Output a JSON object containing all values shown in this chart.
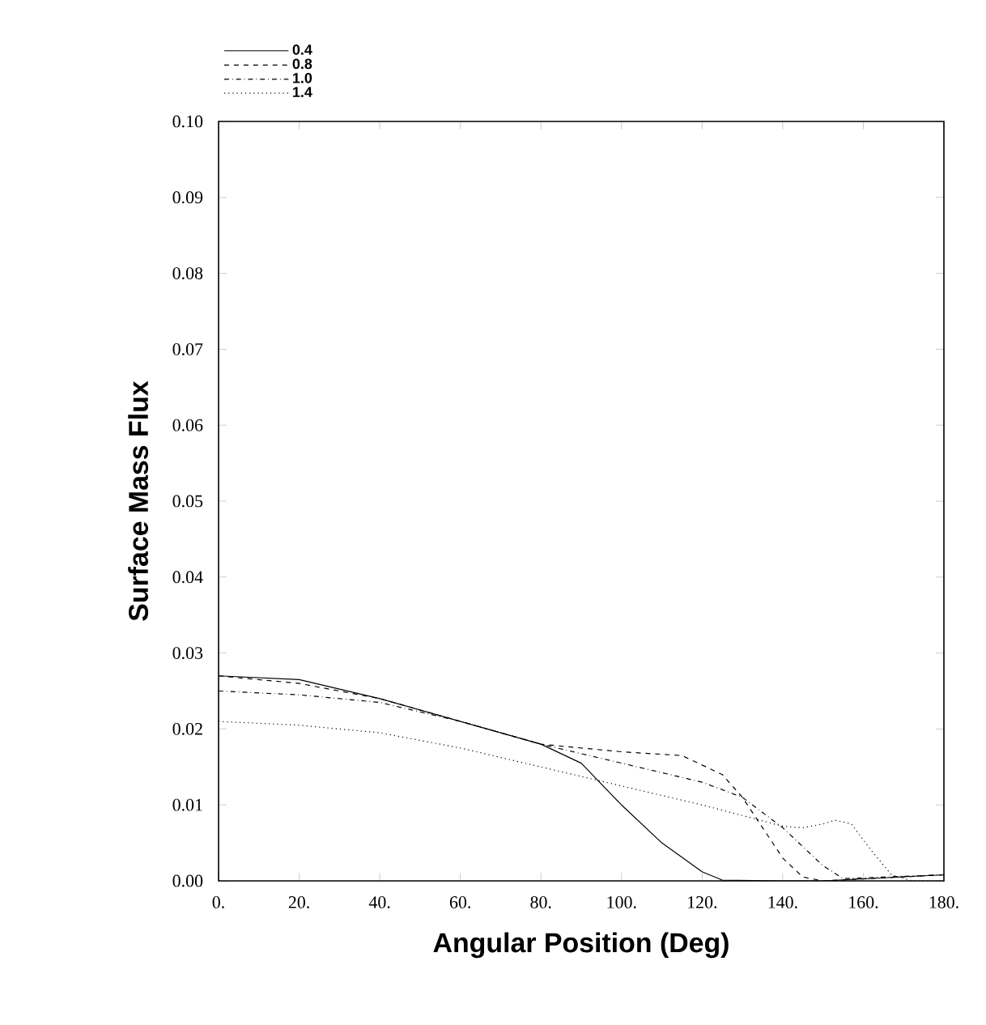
{
  "chart_data": {
    "type": "line",
    "xlabel": "Angular Position   (Deg)",
    "ylabel": "Surface Mass Flux",
    "xlim": [
      0,
      180
    ],
    "ylim": [
      0,
      0.1
    ],
    "xticks": [
      {
        "value": 0,
        "label": "0."
      },
      {
        "value": 20,
        "label": "20."
      },
      {
        "value": 40,
        "label": "40."
      },
      {
        "value": 60,
        "label": "60."
      },
      {
        "value": 80,
        "label": "80."
      },
      {
        "value": 100,
        "label": "100."
      },
      {
        "value": 120,
        "label": "120."
      },
      {
        "value": 140,
        "label": "140."
      },
      {
        "value": 160,
        "label": "160."
      },
      {
        "value": 180,
        "label": "180."
      }
    ],
    "yticks": [
      {
        "value": 0,
        "label": "0.00"
      },
      {
        "value": 0.01,
        "label": "0.01"
      },
      {
        "value": 0.02,
        "label": "0.02"
      },
      {
        "value": 0.03,
        "label": "0.03"
      },
      {
        "value": 0.04,
        "label": "0.04"
      },
      {
        "value": 0.05,
        "label": "0.05"
      },
      {
        "value": 0.06,
        "label": "0.06"
      },
      {
        "value": 0.07,
        "label": "0.07"
      },
      {
        "value": 0.08,
        "label": "0.08"
      },
      {
        "value": 0.09,
        "label": "0.09"
      },
      {
        "value": 0.1,
        "label": "0.10"
      }
    ],
    "grid": false,
    "legend": "top left",
    "marker": "none",
    "series": [
      {
        "name": "0.4",
        "color": "#000000",
        "line_style": "solid",
        "x": [
          0,
          20,
          40,
          60,
          80,
          90,
          100,
          110,
          120,
          125,
          140,
          150,
          165,
          180
        ],
        "values": [
          0.027,
          0.0265,
          0.024,
          0.021,
          0.018,
          0.0155,
          0.01,
          0.005,
          0.0012,
          0.0001,
          0.0,
          0.0,
          0.0004,
          0.0008
        ]
      },
      {
        "name": "0.8",
        "color": "#000000",
        "line_style": "dashed",
        "x": [
          0,
          20,
          40,
          60,
          80,
          100,
          115,
          125,
          130,
          135,
          140,
          145,
          150,
          165,
          180
        ],
        "values": [
          0.027,
          0.026,
          0.024,
          0.021,
          0.018,
          0.017,
          0.0165,
          0.014,
          0.011,
          0.007,
          0.003,
          0.0005,
          0.0,
          0.0004,
          0.0008
        ]
      },
      {
        "name": "1.0",
        "color": "#000000",
        "line_style": "dashdot",
        "x": [
          0,
          20,
          40,
          60,
          80,
          100,
          120,
          130,
          140,
          150,
          155,
          165,
          180
        ],
        "values": [
          0.025,
          0.0245,
          0.0235,
          0.021,
          0.018,
          0.0155,
          0.013,
          0.011,
          0.007,
          0.002,
          0.0003,
          0.0005,
          0.0008
        ]
      },
      {
        "name": "1.4",
        "color": "#000000",
        "line_style": "dotted",
        "x": [
          0,
          20,
          40,
          60,
          80,
          100,
          120,
          140,
          145,
          150,
          153,
          157,
          162,
          167,
          172,
          180
        ],
        "values": [
          0.021,
          0.0205,
          0.0195,
          0.0175,
          0.015,
          0.0125,
          0.01,
          0.0072,
          0.007,
          0.0075,
          0.008,
          0.0075,
          0.004,
          0.0008,
          0.0,
          0.0
        ]
      }
    ]
  }
}
